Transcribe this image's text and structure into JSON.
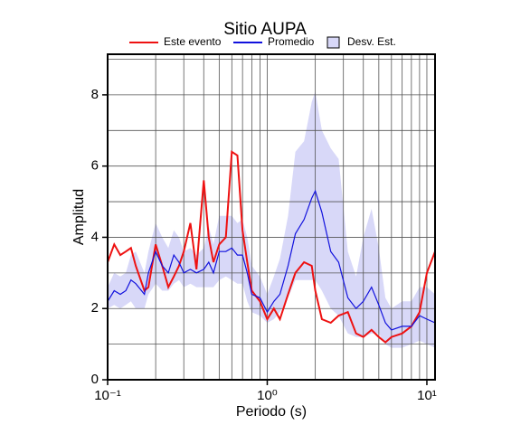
{
  "chart_data": {
    "type": "line",
    "title": "Sitio AUPA",
    "xlabel": "Periodo (s)",
    "ylabel": "Amplitud",
    "xscale": "log",
    "grid": true,
    "xlim": [
      0.1,
      11.25
    ],
    "ylim": [
      0,
      9.14
    ],
    "xticks": [
      {
        "value": 0.1,
        "label": "10⁻¹"
      },
      {
        "value": 1,
        "label": "10⁰"
      },
      {
        "value": 10,
        "label": "10¹"
      }
    ],
    "xminor": [
      0.2,
      0.3,
      0.4,
      0.5,
      0.6,
      0.7,
      0.8,
      0.9,
      2,
      3,
      4,
      5,
      6,
      7,
      8,
      9
    ],
    "yticks": [
      0,
      2,
      4,
      6,
      8
    ],
    "yminor": [
      1,
      3,
      5,
      7,
      9
    ],
    "x": [
      0.1,
      0.11,
      0.12,
      0.13,
      0.14,
      0.15,
      0.17,
      0.18,
      0.2,
      0.22,
      0.24,
      0.26,
      0.28,
      0.3,
      0.33,
      0.36,
      0.4,
      0.43,
      0.46,
      0.5,
      0.55,
      0.6,
      0.65,
      0.7,
      0.75,
      0.8,
      0.9,
      1,
      1.1,
      1.2,
      1.35,
      1.5,
      1.7,
      1.9,
      2.0,
      2.2,
      2.5,
      2.8,
      3.2,
      3.6,
      4,
      4.5,
      5,
      5.5,
      6,
      7,
      8,
      9,
      10,
      11.25
    ],
    "series": [
      {
        "name": "Este evento",
        "color": "#ee1111",
        "kind": "line",
        "values": [
          3.3,
          3.8,
          3.5,
          3.6,
          3.7,
          3.2,
          2.5,
          2.6,
          3.8,
          3.2,
          2.6,
          2.9,
          3.2,
          3.6,
          4.4,
          3.1,
          5.6,
          4.0,
          3.3,
          3.8,
          4.0,
          6.4,
          6.3,
          4.2,
          3.3,
          2.5,
          2.2,
          1.7,
          2.0,
          1.7,
          2.4,
          3.0,
          3.3,
          3.2,
          2.5,
          1.7,
          1.6,
          1.8,
          1.9,
          1.3,
          1.2,
          1.4,
          1.2,
          1.05,
          1.2,
          1.3,
          1.5,
          1.9,
          3.0,
          3.6
        ]
      },
      {
        "name": "Promedio",
        "color": "#1111dd",
        "kind": "line",
        "values": [
          2.2,
          2.5,
          2.4,
          2.5,
          2.8,
          2.7,
          2.4,
          3.0,
          3.6,
          3.2,
          3.0,
          3.5,
          3.3,
          3.0,
          3.1,
          3.0,
          3.1,
          3.3,
          3.0,
          3.6,
          3.6,
          3.7,
          3.5,
          3.5,
          3.0,
          2.4,
          2.3,
          1.9,
          2.2,
          2.4,
          3.2,
          4.1,
          4.5,
          5.1,
          5.3,
          4.7,
          3.6,
          3.3,
          2.3,
          2.0,
          2.2,
          2.6,
          2.1,
          1.6,
          1.4,
          1.5,
          1.5,
          1.8,
          1.7,
          1.6
        ]
      },
      {
        "name": "Desv. Est.",
        "color": "#d8d8f8",
        "kind": "band",
        "lower": [
          2.0,
          2.1,
          2.0,
          2.1,
          2.2,
          2.0,
          2.0,
          2.4,
          2.7,
          2.5,
          2.5,
          2.7,
          2.8,
          2.6,
          2.7,
          2.6,
          2.6,
          2.6,
          2.6,
          2.8,
          2.9,
          2.8,
          2.7,
          2.7,
          2.2,
          1.9,
          1.8,
          1.6,
          1.7,
          1.9,
          2.3,
          2.8,
          2.8,
          2.8,
          2.8,
          2.5,
          2.0,
          1.8,
          1.3,
          1.2,
          1.2,
          1.3,
          1.3,
          1.0,
          0.9,
          0.9,
          1.0,
          1.1,
          1.0,
          0.9
        ],
        "upper": [
          2.6,
          3.0,
          2.9,
          3.0,
          3.5,
          3.6,
          3.0,
          3.6,
          4.4,
          4.0,
          3.7,
          4.2,
          4.0,
          3.6,
          3.7,
          3.5,
          3.7,
          4.3,
          3.8,
          4.6,
          4.6,
          4.6,
          4.4,
          4.5,
          4.0,
          3.2,
          2.9,
          2.4,
          2.9,
          3.4,
          4.6,
          6.4,
          6.7,
          7.8,
          8.1,
          7.0,
          6.5,
          6.2,
          3.6,
          2.9,
          4.0,
          4.8,
          3.7,
          2.3,
          2.0,
          2.2,
          2.2,
          2.6,
          2.6,
          2.4
        ]
      }
    ]
  }
}
